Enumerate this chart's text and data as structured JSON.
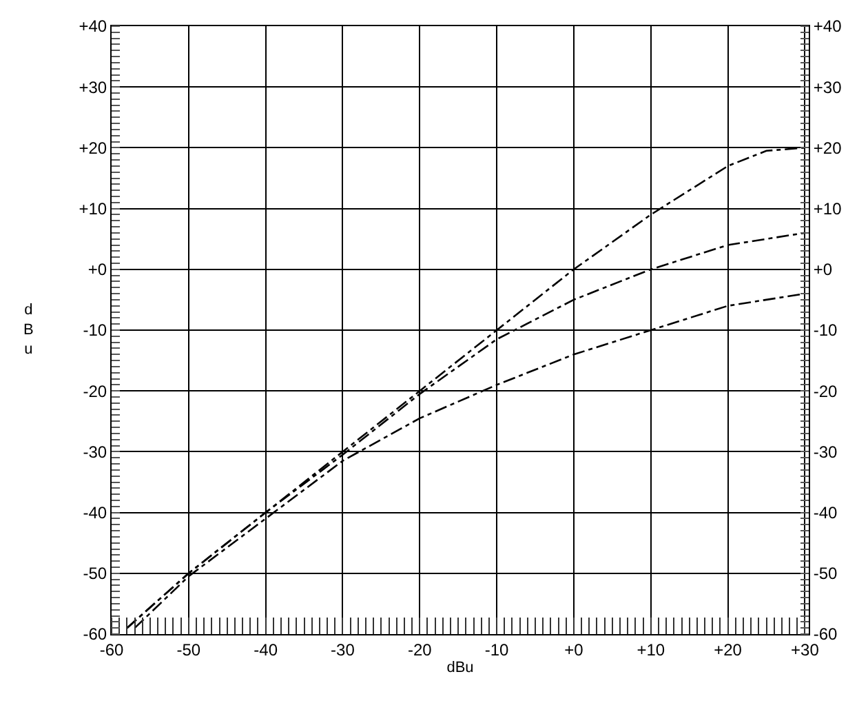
{
  "chart_data": {
    "type": "line",
    "xlabel": "dBu",
    "ylabel": "dBu",
    "series": [
      {
        "color": "#000000",
        "x": [
          -58,
          -50,
          -40,
          -30,
          -20,
          -10,
          0,
          10,
          20,
          25,
          30
        ],
        "values": [
          -59,
          -50,
          -40,
          -30,
          -20,
          -10,
          0,
          9,
          17,
          19.5,
          20
        ]
      },
      {
        "color": "#000000",
        "x": [
          -58,
          -50,
          -40,
          -30,
          -20,
          -10,
          0,
          10,
          20,
          30
        ],
        "values": [
          -59,
          -50,
          -40,
          -30.5,
          -20.5,
          -11.5,
          -5,
          0,
          4,
          6
        ]
      },
      {
        "color": "#000000",
        "x": [
          -57,
          -50,
          -40,
          -30,
          -20,
          -10,
          0,
          10,
          20,
          30
        ],
        "values": [
          -59,
          -50.5,
          -41,
          -31.5,
          -24.5,
          -19,
          -14,
          -10,
          -6,
          -4
        ]
      }
    ],
    "xlim": [
      -60,
      30.5
    ],
    "xticks": [
      -60,
      -50,
      -40,
      -30,
      -20,
      -10,
      {
        "value": 0,
        "label": "+0"
      },
      {
        "value": 10,
        "label": "+10"
      },
      {
        "value": 20,
        "label": "+20"
      },
      {
        "value": 30,
        "label": "+30"
      }
    ],
    "ylim": [
      -60,
      40
    ],
    "yticks": [
      -60,
      -50,
      -40,
      -30,
      -20,
      -10,
      {
        "value": 0,
        "label": "+0"
      },
      {
        "value": 10,
        "label": "+10"
      },
      {
        "value": 20,
        "label": "+20"
      },
      {
        "value": 30,
        "label": "+30"
      },
      {
        "value": 40,
        "label": "+40"
      }
    ],
    "y2lim": [
      -60,
      40
    ],
    "y2ticks": [
      -60,
      -50,
      -40,
      -30,
      -20,
      -10,
      {
        "value": 0,
        "label": "+0"
      },
      {
        "value": 10,
        "label": "+10"
      },
      {
        "value": 20,
        "label": "+20"
      },
      {
        "value": 30,
        "label": "+30"
      },
      {
        "value": 40,
        "label": "+40"
      }
    ],
    "grid": true,
    "marker": "none",
    "line_style": "dashed"
  }
}
